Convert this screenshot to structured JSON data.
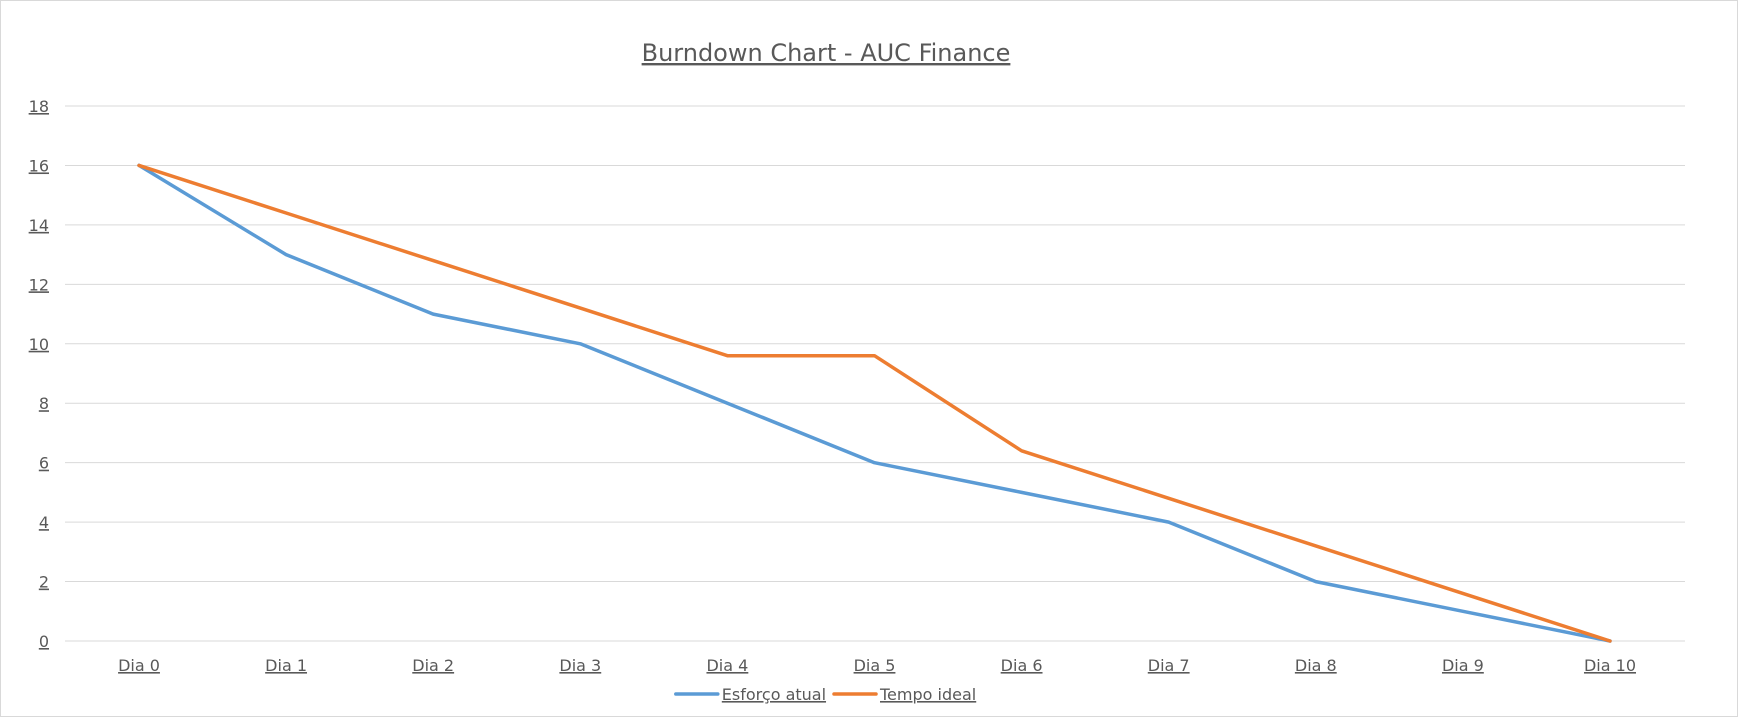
{
  "chart_data": {
    "type": "line",
    "title": "Burndown Chart - AUC Finance",
    "xlabel": "",
    "ylabel": "",
    "categories": [
      "Dia 0",
      "Dia 1",
      "Dia 2",
      "Dia 3",
      "Dia 4",
      "Dia 5",
      "Dia 6",
      "Dia 7",
      "Dia 8",
      "Dia 9",
      "Dia 10"
    ],
    "ylim": [
      0,
      18
    ],
    "yticks": [
      "0",
      "2",
      "4",
      "6",
      "8",
      "10",
      "12",
      "14",
      "16",
      "18"
    ],
    "grid": true,
    "legend_position": "bottom",
    "series": [
      {
        "name": "Esforço atual",
        "color": "#5b9bd5",
        "values": [
          16,
          13,
          11,
          10,
          8,
          6,
          5,
          4,
          2,
          1,
          0
        ]
      },
      {
        "name": "Tempo ideal",
        "color": "#ed7d31",
        "values": [
          16,
          14.4,
          12.8,
          11.2,
          9.6,
          9.6,
          6.4,
          4.8,
          3.2,
          1.6,
          0
        ]
      }
    ]
  }
}
